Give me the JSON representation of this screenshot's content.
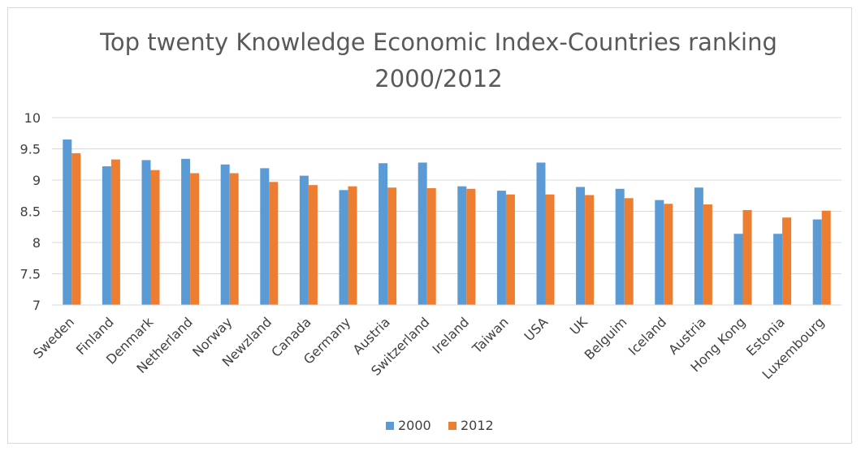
{
  "chart_data": {
    "type": "bar",
    "title_lines": [
      "Top twenty Knowledge Economic Index-Countries ranking",
      "2000/2012"
    ],
    "categories": [
      "Sweden",
      "Finland",
      "Denmark",
      "Netherland",
      "Norway",
      "Newzland",
      "Canada",
      "Germany",
      "Austria",
      "Switzerland",
      "Ireland",
      "Taiwan",
      "USA",
      "UK",
      "Belguim",
      "Iceland",
      "Austria",
      "Hong Kong",
      "Estonia",
      "Luxembourg"
    ],
    "series": [
      {
        "name": "2000",
        "color": "#5B9BD5",
        "values": [
          9.65,
          9.22,
          9.32,
          9.34,
          9.25,
          9.19,
          9.07,
          8.84,
          9.27,
          9.28,
          8.9,
          8.83,
          9.28,
          8.89,
          8.86,
          8.68,
          8.88,
          8.14,
          8.14,
          8.37
        ]
      },
      {
        "name": "2012",
        "color": "#ED7D31",
        "values": [
          9.43,
          9.33,
          9.16,
          9.11,
          9.11,
          8.97,
          8.92,
          8.9,
          8.88,
          8.87,
          8.86,
          8.77,
          8.77,
          8.76,
          8.71,
          8.62,
          8.61,
          8.52,
          8.4,
          8.51
        ]
      }
    ],
    "ylim": [
      7,
      10
    ],
    "yticks": [
      "7",
      "7.5",
      "8",
      "8.5",
      "9",
      "9.5",
      "10"
    ],
    "ytick_values": [
      7,
      7.5,
      8,
      8.5,
      9,
      9.5,
      10
    ],
    "grid": true,
    "legend_position": "bottom"
  }
}
